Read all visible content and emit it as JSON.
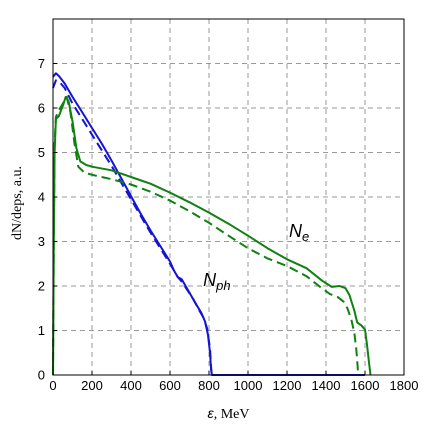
{
  "chart_data": {
    "type": "line",
    "xlabel_symbol": "ε",
    "xlabel_unit": ", MeV",
    "ylabel": "dN/deps, a.u.",
    "xlim": [
      0,
      1800
    ],
    "ylim": [
      0,
      8
    ],
    "xticks": [
      0,
      200,
      400,
      600,
      800,
      1000,
      1200,
      1400,
      1600,
      1800
    ],
    "yticks": [
      0,
      1,
      2,
      3,
      4,
      5,
      6,
      7
    ],
    "grid": true,
    "colors": {
      "blue": "#1414d2",
      "green": "#108010"
    },
    "annotations": [
      {
        "base": "N",
        "sub": "e",
        "x": 1210,
        "y": 3.1
      },
      {
        "base": "N",
        "sub": "ph",
        "x": 770,
        "y": 2.0
      }
    ],
    "series": [
      {
        "color": "#1414d2",
        "style": "solid",
        "points": [
          [
            0,
            6.7
          ],
          [
            15,
            6.78
          ],
          [
            30,
            6.72
          ],
          [
            60,
            6.55
          ],
          [
            100,
            6.25
          ],
          [
            150,
            5.9
          ],
          [
            200,
            5.55
          ],
          [
            250,
            5.2
          ],
          [
            300,
            4.82
          ],
          [
            350,
            4.42
          ],
          [
            400,
            4.02
          ],
          [
            450,
            3.62
          ],
          [
            500,
            3.25
          ],
          [
            550,
            2.9
          ],
          [
            600,
            2.55
          ],
          [
            620,
            2.35
          ],
          [
            640,
            2.2
          ],
          [
            660,
            2.15
          ],
          [
            680,
            2.0
          ],
          [
            700,
            1.85
          ],
          [
            730,
            1.62
          ],
          [
            760,
            1.4
          ],
          [
            780,
            1.2
          ],
          [
            795,
            0.9
          ],
          [
            805,
            0.5
          ],
          [
            810,
            0.15
          ],
          [
            815,
            0.0
          ],
          [
            1600,
            0.0
          ]
        ]
      },
      {
        "color": "#1414d2",
        "style": "dashed",
        "points": [
          [
            0,
            6.45
          ],
          [
            15,
            6.62
          ],
          [
            30,
            6.6
          ],
          [
            60,
            6.45
          ],
          [
            100,
            6.1
          ],
          [
            150,
            5.75
          ],
          [
            200,
            5.4
          ],
          [
            250,
            5.05
          ],
          [
            300,
            4.7
          ],
          [
            350,
            4.32
          ],
          [
            400,
            3.95
          ],
          [
            450,
            3.57
          ],
          [
            500,
            3.2
          ],
          [
            550,
            2.85
          ],
          [
            600,
            2.5
          ],
          [
            640,
            2.2
          ],
          [
            660,
            2.1
          ],
          [
            690,
            1.9
          ],
          [
            720,
            1.7
          ],
          [
            750,
            1.45
          ],
          [
            770,
            1.3
          ],
          [
            790,
            1.05
          ],
          [
            805,
            0.6
          ],
          [
            812,
            0.1
          ],
          [
            815,
            0.0
          ]
        ]
      },
      {
        "color": "#108010",
        "style": "solid",
        "points": [
          [
            0,
            0.0
          ],
          [
            4,
            3.0
          ],
          [
            8,
            5.0
          ],
          [
            15,
            5.75
          ],
          [
            30,
            5.82
          ],
          [
            50,
            6.05
          ],
          [
            65,
            6.25
          ],
          [
            80,
            6.15
          ],
          [
            100,
            5.7
          ],
          [
            120,
            5.1
          ],
          [
            140,
            4.8
          ],
          [
            170,
            4.72
          ],
          [
            200,
            4.68
          ],
          [
            300,
            4.6
          ],
          [
            400,
            4.45
          ],
          [
            500,
            4.3
          ],
          [
            600,
            4.1
          ],
          [
            700,
            3.88
          ],
          [
            800,
            3.65
          ],
          [
            900,
            3.4
          ],
          [
            1000,
            3.13
          ],
          [
            1100,
            2.85
          ],
          [
            1200,
            2.6
          ],
          [
            1300,
            2.4
          ],
          [
            1380,
            2.12
          ],
          [
            1430,
            1.98
          ],
          [
            1470,
            2.0
          ],
          [
            1500,
            1.95
          ],
          [
            1520,
            1.8
          ],
          [
            1545,
            1.45
          ],
          [
            1560,
            1.18
          ],
          [
            1580,
            1.12
          ],
          [
            1600,
            1.02
          ],
          [
            1610,
            0.7
          ],
          [
            1620,
            0.3
          ],
          [
            1628,
            0.0
          ]
        ]
      },
      {
        "color": "#108010",
        "style": "dashed",
        "points": [
          [
            0,
            0.0
          ],
          [
            4,
            3.0
          ],
          [
            8,
            5.2
          ],
          [
            15,
            5.8
          ],
          [
            30,
            5.95
          ],
          [
            50,
            6.1
          ],
          [
            70,
            6.25
          ],
          [
            90,
            5.9
          ],
          [
            110,
            5.2
          ],
          [
            130,
            4.68
          ],
          [
            160,
            4.55
          ],
          [
            200,
            4.5
          ],
          [
            300,
            4.4
          ],
          [
            400,
            4.28
          ],
          [
            500,
            4.12
          ],
          [
            600,
            3.92
          ],
          [
            700,
            3.68
          ],
          [
            800,
            3.42
          ],
          [
            900,
            3.13
          ],
          [
            1000,
            2.85
          ],
          [
            1100,
            2.62
          ],
          [
            1200,
            2.45
          ],
          [
            1300,
            2.22
          ],
          [
            1370,
            1.98
          ],
          [
            1420,
            1.82
          ],
          [
            1460,
            1.75
          ],
          [
            1490,
            1.65
          ],
          [
            1510,
            1.5
          ],
          [
            1530,
            1.25
          ],
          [
            1545,
            0.95
          ],
          [
            1555,
            0.6
          ],
          [
            1562,
            0.2
          ],
          [
            1565,
            0.0
          ]
        ]
      }
    ]
  }
}
